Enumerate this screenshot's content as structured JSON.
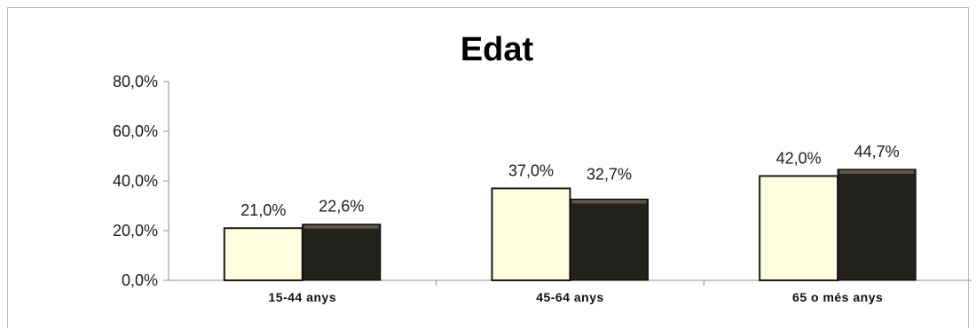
{
  "chart_data": {
    "type": "bar",
    "title": "Edat",
    "categories": [
      "15-44 anys",
      "45-64 anys",
      "65 o més anys"
    ],
    "series": [
      {
        "values": [
          21.0,
          37.0,
          42.0
        ],
        "labels": [
          "21,0%",
          "37,0%",
          "42,0%"
        ],
        "color": "#ffffe0",
        "stroke": "#1a1a1a"
      },
      {
        "values": [
          22.6,
          32.7,
          44.7
        ],
        "labels": [
          "22,6%",
          "32,7%",
          "44,7%"
        ],
        "color": "#23211b",
        "stroke": "#000000"
      }
    ],
    "ylim": [
      0,
      80
    ],
    "yticks": [
      0,
      20,
      40,
      60,
      80
    ],
    "ytick_labels": [
      "0,0%",
      "20,0%",
      "40,0%",
      "60,0%",
      "80,0%"
    ],
    "grid": false,
    "legend": false
  }
}
